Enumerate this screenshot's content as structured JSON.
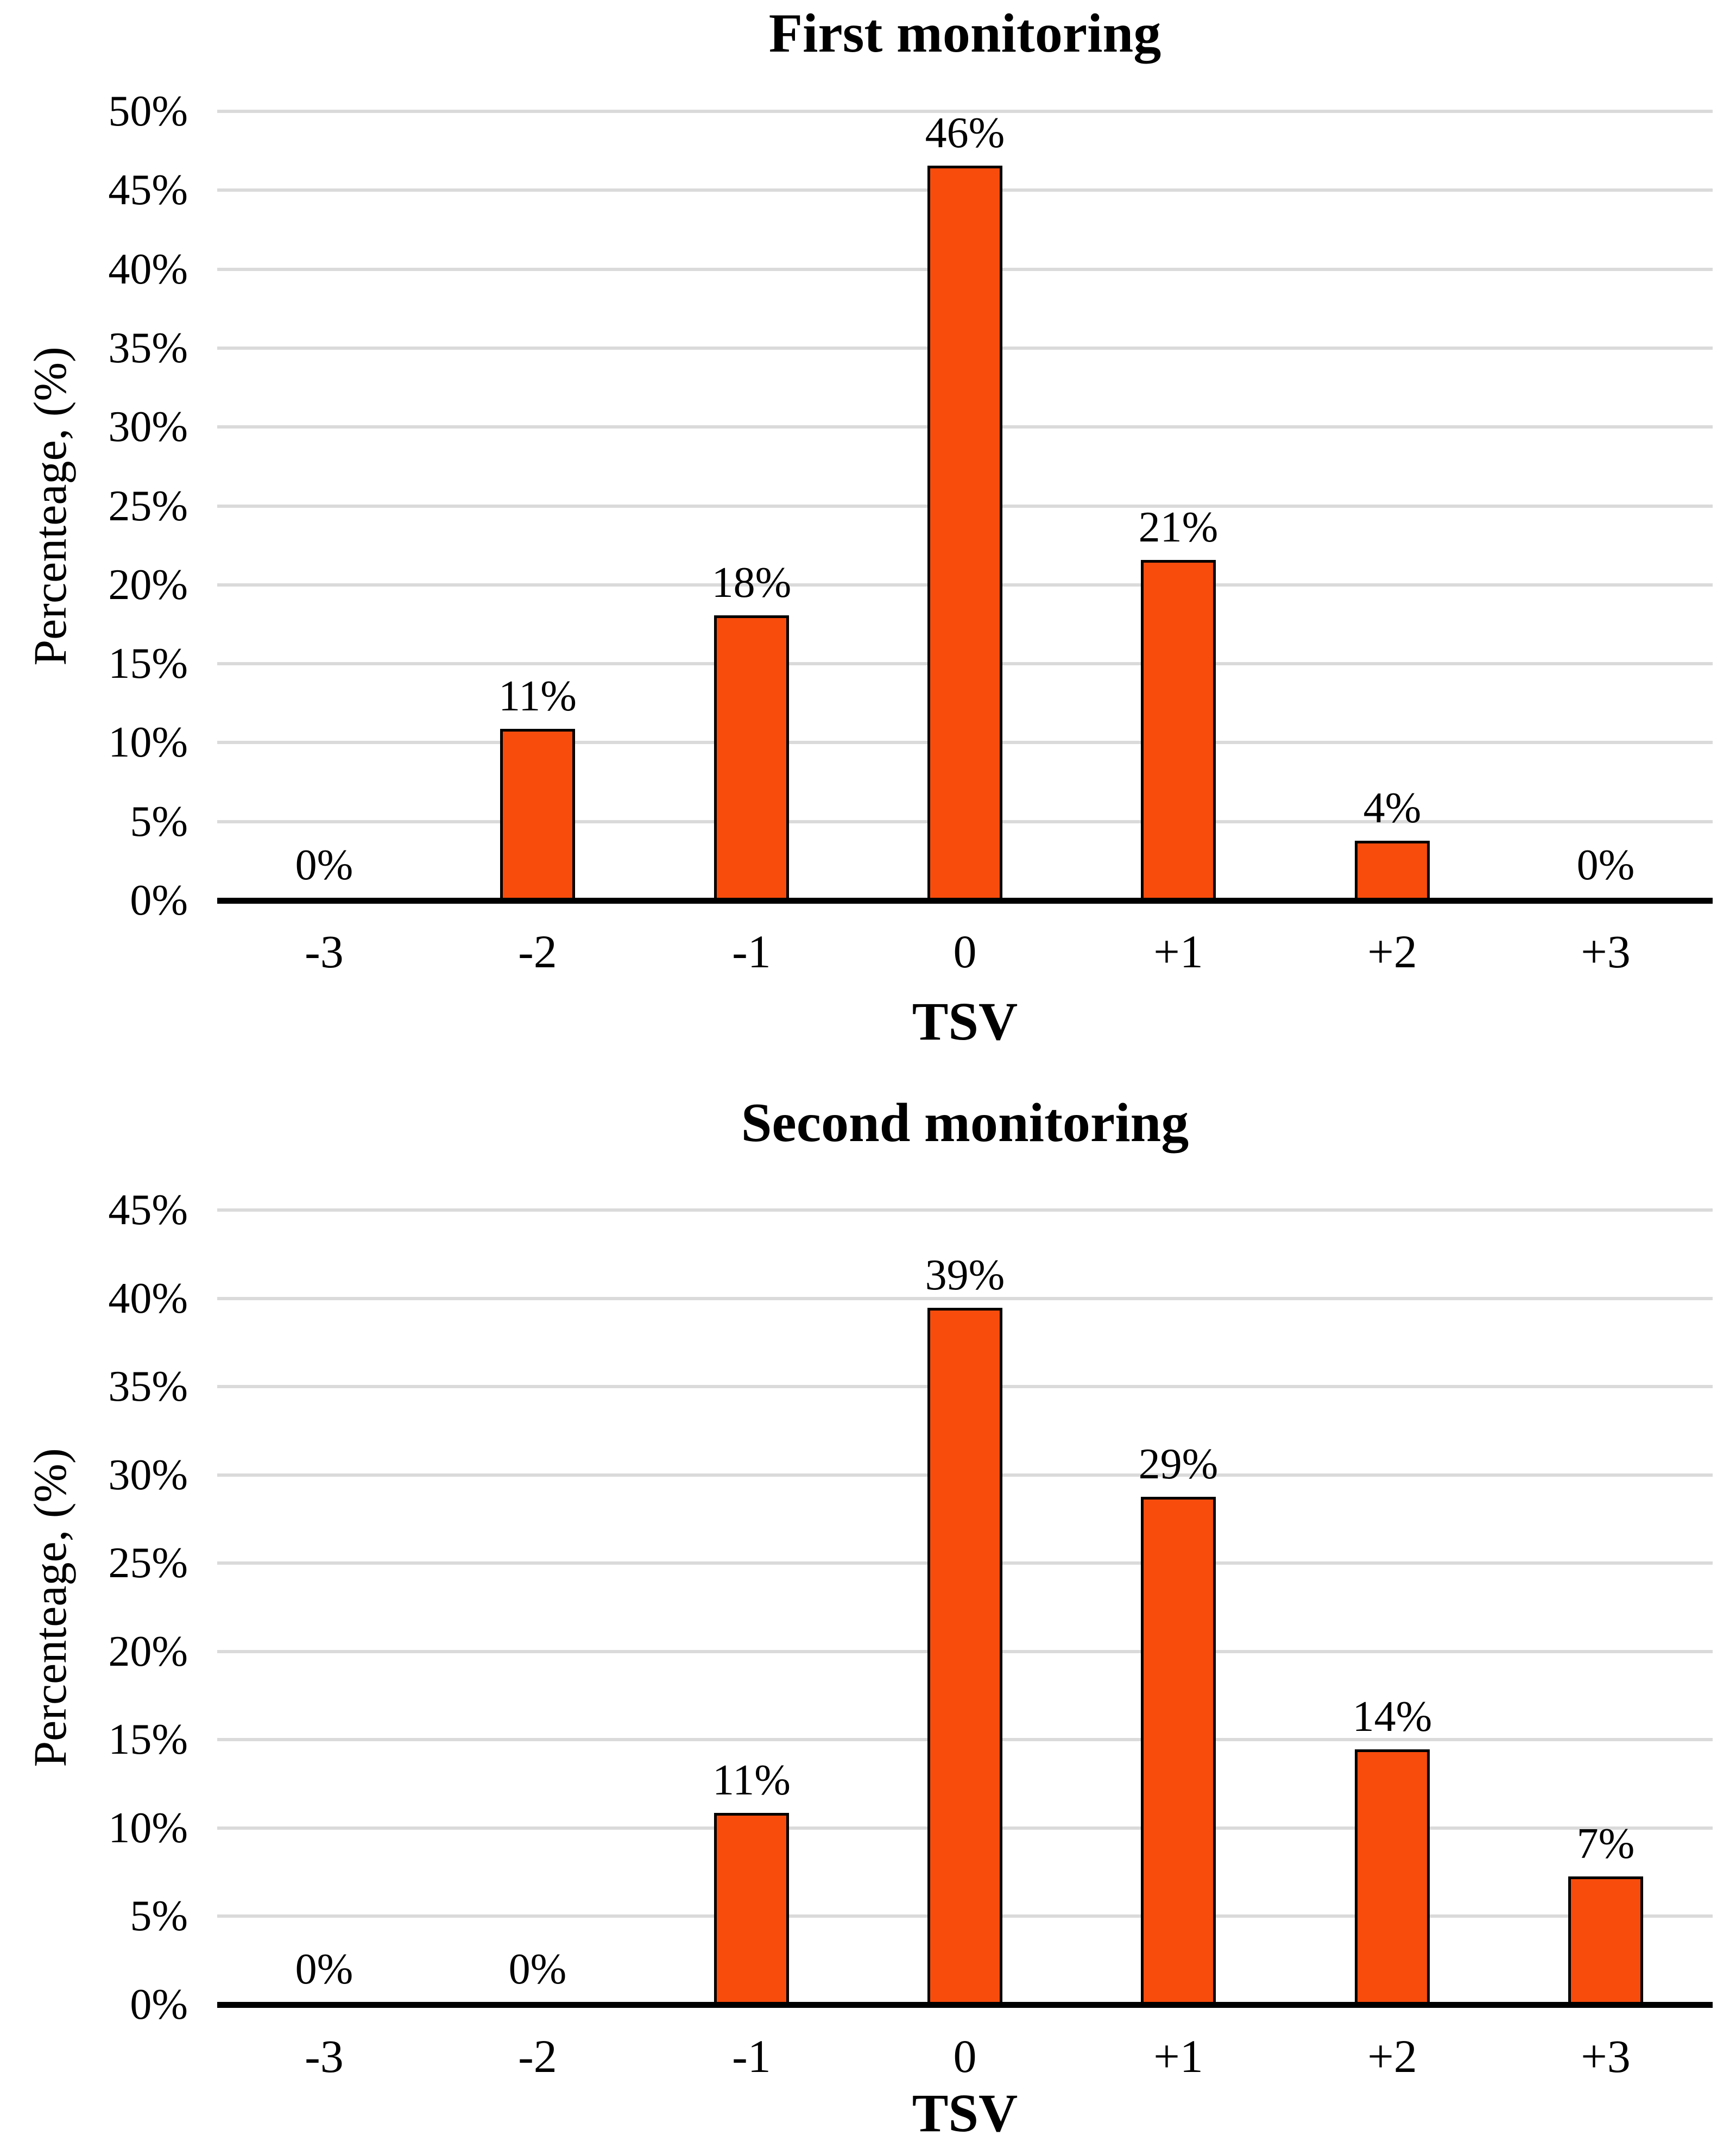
{
  "figure": {
    "background": "#FFFFFF",
    "text_color": "#000000"
  },
  "chart_data": [
    {
      "type": "bar",
      "title": "First monitoring",
      "ylabel": "Percenteage, (%)",
      "xlabel": "TSV",
      "categories": [
        "-3",
        "-2",
        "-1",
        "0",
        "+1",
        "+2",
        "+3"
      ],
      "series": [
        {
          "name": "First monitoring",
          "values": [
            0,
            10.7,
            17.9,
            46.4,
            21.4,
            3.6,
            0
          ]
        }
      ],
      "data_labels": [
        "0%",
        "11%",
        "18%",
        "46%",
        "21%",
        "4%",
        "0%"
      ],
      "ylim": [
        0,
        50
      ],
      "ytick_step": 5,
      "ytick_labels": [
        "0%",
        "5%",
        "10%",
        "15%",
        "20%",
        "25%",
        "30%",
        "35%",
        "40%",
        "45%",
        "50%"
      ],
      "grid": true,
      "legend": "none",
      "bar_color": "#F84C0C",
      "bar_border_color": "#000000",
      "gridline_color": "#DADADA",
      "axis_color": "#000000"
    },
    {
      "type": "bar",
      "title": "Second monitoring",
      "ylabel": "Percenteage, (%)",
      "xlabel": "TSV",
      "categories": [
        "-3",
        "-2",
        "-1",
        "0",
        "+1",
        "+2",
        "+3"
      ],
      "series": [
        {
          "name": "Second monitoring",
          "values": [
            0,
            0,
            10.7,
            39.3,
            28.6,
            14.3,
            7.1
          ]
        }
      ],
      "data_labels": [
        "0%",
        "0%",
        "11%",
        "39%",
        "29%",
        "14%",
        "7%"
      ],
      "ylim": [
        0,
        45
      ],
      "ytick_step": 5,
      "ytick_labels": [
        "0%",
        "5%",
        "10%",
        "15%",
        "20%",
        "25%",
        "30%",
        "35%",
        "40%",
        "45%"
      ],
      "grid": true,
      "legend": "none",
      "bar_color": "#F84C0C",
      "bar_border_color": "#000000",
      "gridline_color": "#DADADA",
      "axis_color": "#000000"
    }
  ]
}
